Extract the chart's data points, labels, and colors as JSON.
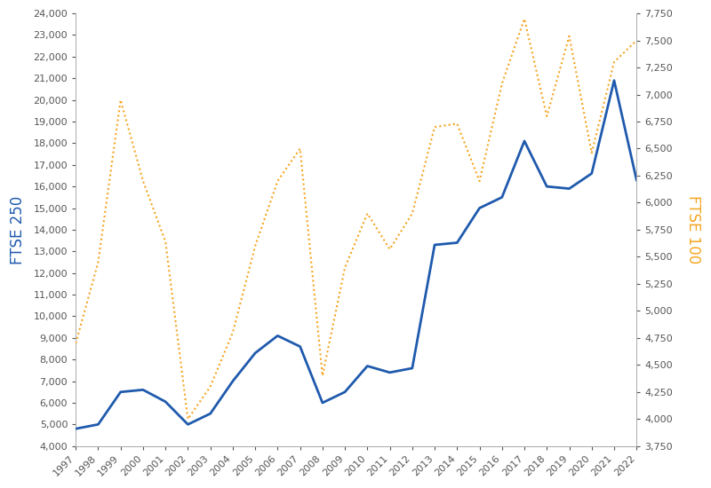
{
  "years": [
    1997,
    1998,
    1999,
    2000,
    2001,
    2002,
    2003,
    2004,
    2005,
    2006,
    2007,
    2008,
    2009,
    2010,
    2011,
    2012,
    2013,
    2014,
    2015,
    2016,
    2017,
    2018,
    2019,
    2020,
    2021,
    2022
  ],
  "ftse250": [
    4800,
    5000,
    6500,
    6600,
    6050,
    5000,
    5500,
    7000,
    8300,
    9100,
    8600,
    6000,
    6500,
    7700,
    7400,
    7600,
    13300,
    13400,
    15000,
    15500,
    18100,
    16000,
    15900,
    16600,
    20900,
    16300
  ],
  "ftse100": [
    4700,
    5450,
    6950,
    6200,
    5640,
    4000,
    4300,
    4800,
    5600,
    6200,
    6500,
    4400,
    5400,
    5900,
    5570,
    5900,
    6700,
    6730,
    6200,
    7100,
    7700,
    6800,
    7540,
    6460,
    7300,
    7500
  ],
  "blue_color": "#1f5aad",
  "orange_color": "#f5a623",
  "left_ylabel": "FTSE 250",
  "right_ylabel": "FTSE 100",
  "left_ylim": [
    4000,
    24000
  ],
  "right_ylim": [
    3750,
    7750
  ],
  "left_yticks": [
    4000,
    5000,
    6000,
    7000,
    8000,
    9000,
    10000,
    11000,
    12000,
    13000,
    14000,
    15000,
    16000,
    17000,
    18000,
    19000,
    20000,
    21000,
    22000,
    23000,
    24000
  ],
  "right_yticks": [
    3750,
    4000,
    4250,
    4500,
    4750,
    5000,
    5250,
    5500,
    5750,
    6000,
    6250,
    6500,
    6750,
    7000,
    7250,
    7500,
    7750
  ],
  "xlim": [
    1997,
    2022
  ],
  "background_color": "#ffffff",
  "left_label_color": "#1f5aad",
  "right_label_color": "#f5a623",
  "tick_label_color": "#555555",
  "spine_color": "#aaaaaa",
  "label_fontsize": 12,
  "tick_fontsize": 8
}
